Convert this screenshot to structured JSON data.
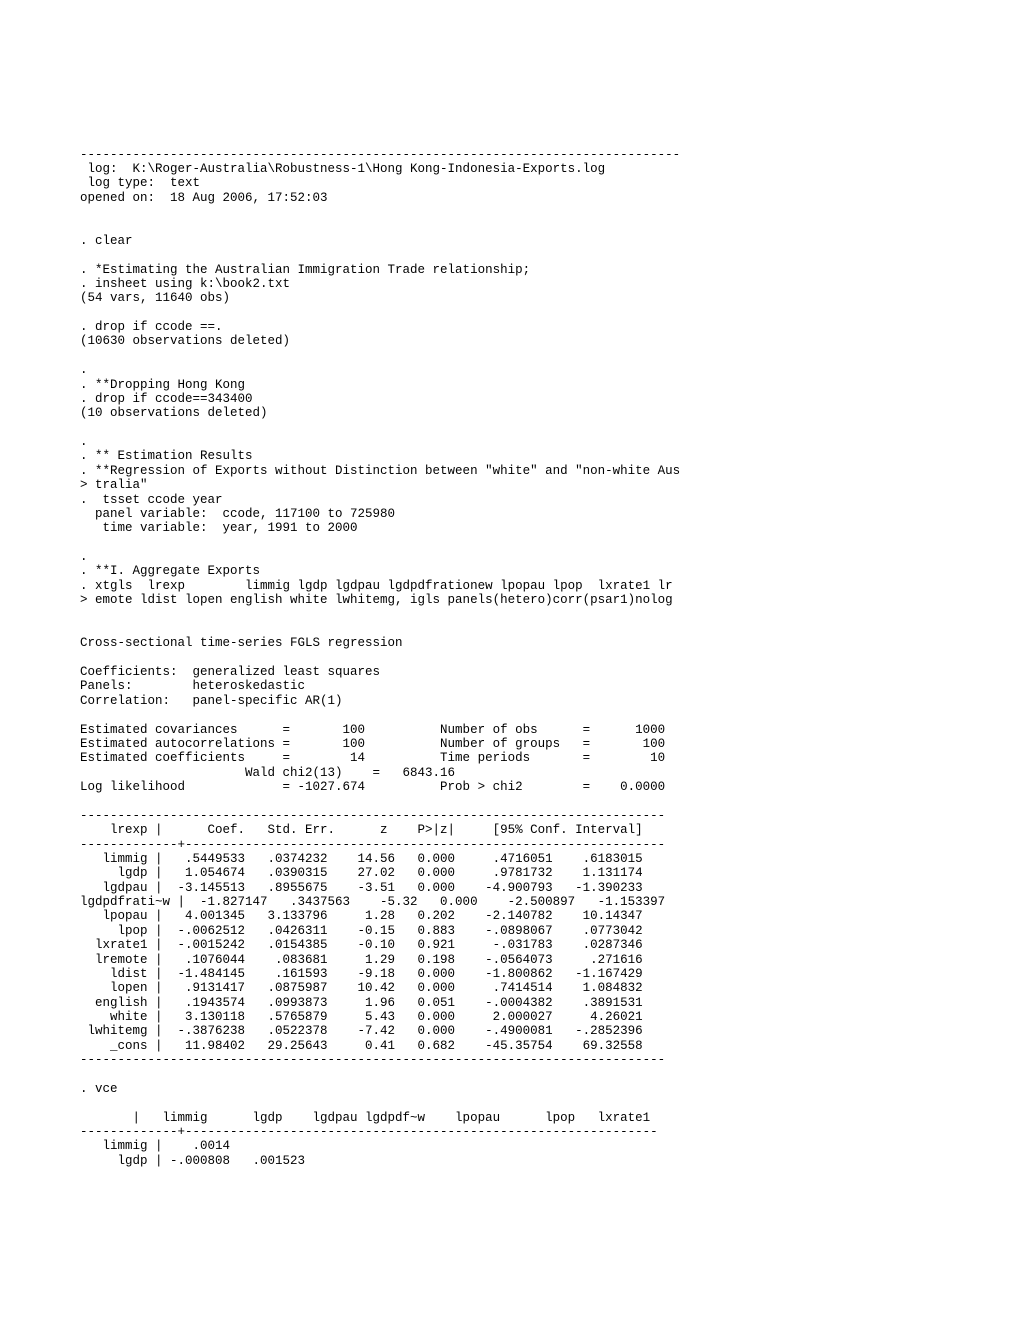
{
  "header": {
    "sep": "--------------------------------------------------------------------------------",
    "log_label": " log:  K:\\Roger-Australia\\Robustness-1\\Hong Kong-Indonesia-Exports.log",
    "log_type": " log type:  text",
    "opened_on": "opened on:  18 Aug 2006, 17:52:03"
  },
  "cmds": {
    "clear": ". clear",
    "est_rel": ". *Estimating the Australian Immigration Trade relationship;",
    "insheet": ". insheet using k:\\book2.txt",
    "insheet_out": "(54 vars, 11640 obs)",
    "drop_ccode": ". drop if ccode ==.",
    "drop_ccode_out": "(10630 observations deleted)",
    "dot1": ".",
    "drop_hk_comment": ". **Dropping Hong Kong",
    "drop_hk": ". drop if ccode==343400",
    "drop_hk_out": "(10 observations deleted)",
    "dot2": ".",
    "est_results": ". ** Estimation Results",
    "reg_comment": ". **Regression of Exports without Distinction between \"white\" and \"non-white Aus",
    "reg_comment2": "> tralia\"",
    "tsset": ".  tsset ccode year",
    "panel_var": "  panel variable:  ccode, 117100 to 725980",
    "time_var": "   time variable:  year, 1991 to 2000",
    "dot3": ".",
    "agg_exports": ". **I. Aggregate Exports",
    "xtgls": ". xtgls  lrexp        limmig lgdp lgdpau lgdpdfrationew lpopau lpop  lxrate1 lr",
    "xtgls2": "> emote ldist lopen english white lwhitemg, igls panels(hetero)corr(psar1)nolog"
  },
  "regression": {
    "title": "Cross-sectional time-series FGLS regression",
    "coef_line": "Coefficients:  generalized least squares",
    "panels_line": "Panels:        heteroskedastic",
    "corr_line": "Correlation:   panel-specific AR(1)",
    "est_cov": "Estimated covariances      =       100          Number of obs      =      1000",
    "est_auto": "Estimated autocorrelations =       100          Number of groups   =       100",
    "est_coef": "Estimated coefficients     =        14          Time periods       =        10",
    "wald": "                      Wald chi2(13)    =   6843.16",
    "loglik": "Log likelihood             = -1027.674          Prob > chi2        =    0.0000",
    "tbl_sep": "------------------------------------------------------------------------------",
    "tbl_hdr": "    lrexp |      Coef.   Std. Err.      z    P>|z|     [95% Conf. Interval]",
    "tbl_hdr_sep": "-------------+----------------------------------------------------------------",
    "row_limmig": "   limmig |   .5449533   .0374232    14.56   0.000     .4716051    .6183015",
    "row_lgdp": "     lgdp |   1.054674   .0390315    27.02   0.000     .9781732    1.131174",
    "row_lgdpau": "   lgdpau |  -3.145513   .8955675    -3.51   0.000    -4.900793   -1.390233",
    "row_lgdpdfrati": "lgdpdfrati~w |  -1.827147   .3437563    -5.32   0.000    -2.500897   -1.153397",
    "row_lpopau": "   lpopau |   4.001345   3.133796     1.28   0.202    -2.140782    10.14347",
    "row_lpop": "     lpop |  -.0062512   .0426311    -0.15   0.883    -.0898067    .0773042",
    "row_lxrate1": "  lxrate1 |  -.0015242   .0154385    -0.10   0.921     -.031783    .0287346",
    "row_lremote": "  lremote |   .1076044    .083681     1.29   0.198    -.0564073     .271616",
    "row_ldist": "    ldist |  -1.484145    .161593    -9.18   0.000    -1.800862   -1.167429",
    "row_lopen": "    lopen |   .9131417   .0875987    10.42   0.000     .7414514    1.084832",
    "row_english": "  english |   .1943574   .0993873     1.96   0.051    -.0004382    .3891531",
    "row_white": "    white |   3.130118   .5765879     5.43   0.000     2.000027     4.26021",
    "row_lwhitemg": " lwhitemg |  -.3876238   .0522378    -7.42   0.000    -.4900081   -.2852396",
    "row_cons": "    _cons |   11.98402   29.25643     0.41   0.682    -45.35754    69.32558",
    "tbl_bottom": "------------------------------------------------------------------------------"
  },
  "vce": {
    "cmd": ". vce",
    "hdr": "       |   limmig      lgdp    lgdpau lgdpdf~w    lpopau      lpop   lxrate1",
    "hdr_sep": "-------------+---------------------------------------------------------------",
    "row1": "   limmig |    .0014",
    "row2": "     lgdp | -.000808   .001523"
  }
}
